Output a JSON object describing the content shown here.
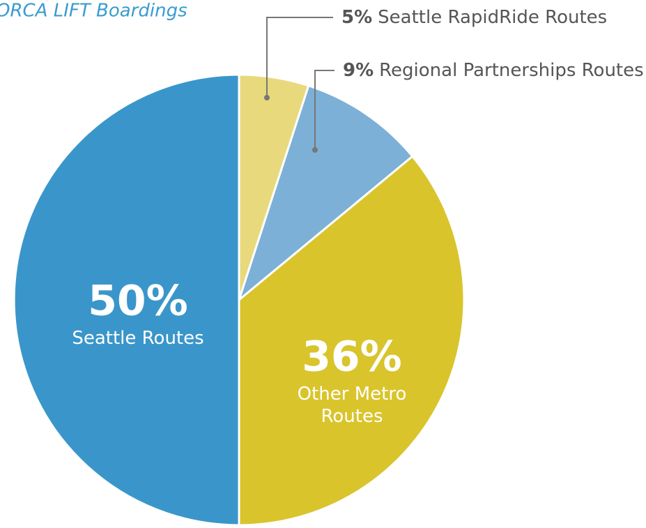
{
  "chart_data": {
    "type": "pie",
    "title": "ORCA LIFT Boardings",
    "categories": [
      "Seattle RapidRide Routes",
      "Regional Partnerships Routes",
      "Other Metro Routes",
      "Seattle Routes"
    ],
    "values": [
      5,
      9,
      36,
      50
    ],
    "value_labels": [
      "5%",
      "9%",
      "36%",
      "50%"
    ],
    "colors": [
      "#e8d97c",
      "#7cb0d7",
      "#d9c42c",
      "#3a96ca"
    ]
  }
}
